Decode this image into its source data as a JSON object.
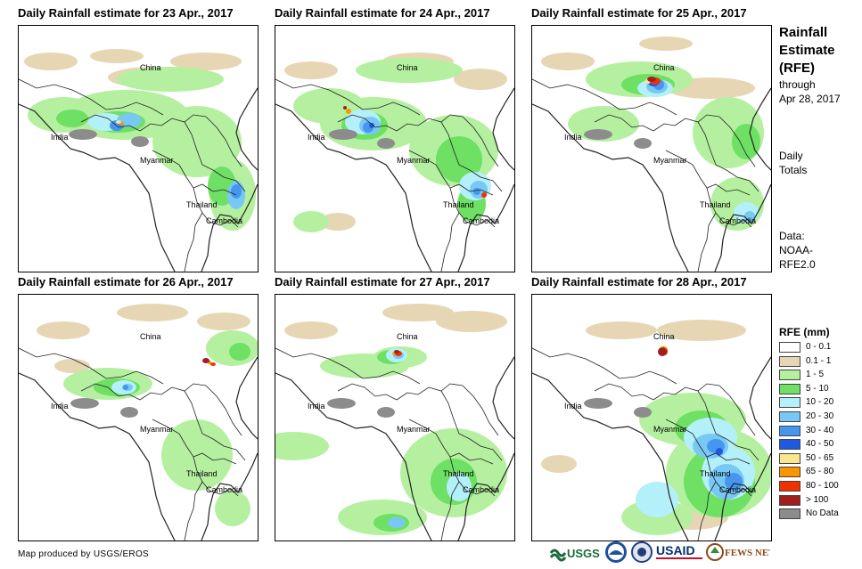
{
  "panels": [
    {
      "title": "Daily Rainfall estimate for 23 Apr., 2017",
      "labels": {
        "china": "China",
        "india": "India",
        "myanmar": "Myanmar",
        "thailand": "Thailand",
        "cambodia": "Cambodia"
      }
    },
    {
      "title": "Daily Rainfall estimate for 24 Apr., 2017",
      "labels": {
        "china": "China",
        "india": "India",
        "myanmar": "Myanmar",
        "thailand": "Thailand",
        "cambodia": "Cambodia"
      }
    },
    {
      "title": "Daily Rainfall estimate for 25 Apr., 2017",
      "labels": {
        "china": "China",
        "india": "India",
        "myanmar": "Myanmar",
        "thailand": "Thailand",
        "cambodia": "Cambodia"
      }
    },
    {
      "title": "Daily Rainfall estimate for 26 Apr., 2017",
      "labels": {
        "china": "China",
        "india": "India",
        "myanmar": "Myanmar",
        "thailand": "Thailand",
        "cambodia": "Cambodia"
      }
    },
    {
      "title": "Daily Rainfall estimate for 27 Apr., 2017",
      "labels": {
        "china": "China",
        "india": "India",
        "myanmar": "Myanmar",
        "thailand": "Thailand",
        "cambodia": "Cambodia"
      }
    },
    {
      "title": "Daily Rainfall estimate for 28 Apr., 2017",
      "labels": {
        "china": "China",
        "india": "India",
        "myanmar": "Myanmar",
        "thailand": "Thailand",
        "cambodia": "Cambodia"
      }
    }
  ],
  "side": {
    "title_lines": [
      "Rainfall",
      "Estimate",
      "(RFE)"
    ],
    "through": "through",
    "through_date": "Apr 28, 2017",
    "daily": "Daily",
    "totals": "Totals",
    "data_label": "Data:",
    "data_src1": "NOAA-",
    "data_src2": "RFE2.0"
  },
  "legend": {
    "title": "RFE (mm)",
    "items": [
      {
        "label": "0 - 0.1",
        "color": "#ffffff"
      },
      {
        "label": "0.1 - 1",
        "color": "#e6d6b4"
      },
      {
        "label": "1 - 5",
        "color": "#b4f0a0"
      },
      {
        "label": "5 - 10",
        "color": "#6ee064"
      },
      {
        "label": "10 - 20",
        "color": "#b4f0fa"
      },
      {
        "label": "20 - 30",
        "color": "#78c8f5"
      },
      {
        "label": "30 - 40",
        "color": "#4696f0"
      },
      {
        "label": "40 - 50",
        "color": "#1e5ae1"
      },
      {
        "label": "50 - 65",
        "color": "#fae68c"
      },
      {
        "label": "65 - 80",
        "color": "#fa9600"
      },
      {
        "label": "80 - 100",
        "color": "#f03200"
      },
      {
        "label": "> 100",
        "color": "#a01e1e"
      },
      {
        "label": "No Data",
        "color": "#8c8c8c"
      }
    ]
  },
  "footer": {
    "credit": "Map produced by USGS/EROS",
    "logo_usgs": "USGS",
    "logo_usaid": "USAID",
    "logo_fews": "FEWS NET"
  }
}
